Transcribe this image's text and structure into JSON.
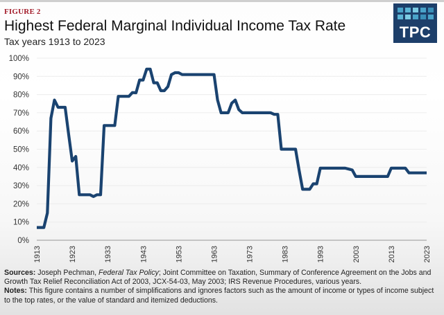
{
  "figure_label": "FIGURE 2",
  "title": "Highest Federal Marginal Individual Income Tax Rate",
  "subtitle": "Tax years 1913 to 2023",
  "logo": {
    "text": "TPC",
    "brand_color": "#1d3f6a"
  },
  "footer": {
    "sources_label": "Sources:",
    "sources_pre": " Joseph Pechman, ",
    "sources_italic": "Federal Tax Policy",
    "sources_post": "; Joint Committee on Taxation, Summary of Conference Agreement on the Jobs and Growth Tax Relief Reconciliation Act of 2003, JCX-54-03, May 2003; IRS Revenue Procedures, various years.",
    "notes_label": "Notes:",
    "notes_text": " This figure contains a number of simplifications and ignores factors such as the amount of income or types of income subject to the top rates, or the value of standard and itemized deductions."
  },
  "chart_data": {
    "type": "line",
    "title": "Highest Federal Marginal Individual Income Tax Rate",
    "subtitle": "Tax years 1913 to 2023",
    "xlabel": "",
    "ylabel": "",
    "xlim": [
      1913,
      2023
    ],
    "ylim": [
      0,
      100
    ],
    "grid": true,
    "legend": "none",
    "line_color": "#1a4370",
    "x_ticks": [
      "1913",
      "1923",
      "1933",
      "1943",
      "1953",
      "1963",
      "1973",
      "1983",
      "1993",
      "2003",
      "2013",
      "2023"
    ],
    "y_ticks": [
      "0%",
      "10%",
      "20%",
      "30%",
      "40%",
      "50%",
      "60%",
      "70%",
      "80%",
      "90%",
      "100%"
    ],
    "y_tick_values": [
      0,
      10,
      20,
      30,
      40,
      50,
      60,
      70,
      80,
      90,
      100
    ],
    "series": [
      {
        "name": "Top marginal rate",
        "x": [
          1913,
          1914,
          1915,
          1916,
          1917,
          1918,
          1919,
          1920,
          1921,
          1922,
          1923,
          1924,
          1925,
          1926,
          1927,
          1928,
          1929,
          1930,
          1931,
          1932,
          1933,
          1934,
          1935,
          1936,
          1937,
          1938,
          1939,
          1940,
          1941,
          1942,
          1943,
          1944,
          1945,
          1946,
          1947,
          1948,
          1949,
          1950,
          1951,
          1952,
          1953,
          1954,
          1955,
          1956,
          1957,
          1958,
          1959,
          1960,
          1961,
          1962,
          1963,
          1964,
          1965,
          1966,
          1967,
          1968,
          1969,
          1970,
          1971,
          1972,
          1973,
          1974,
          1975,
          1976,
          1977,
          1978,
          1979,
          1980,
          1981,
          1982,
          1983,
          1984,
          1985,
          1986,
          1987,
          1988,
          1989,
          1990,
          1991,
          1992,
          1993,
          1994,
          1995,
          1996,
          1997,
          1998,
          1999,
          2000,
          2001,
          2002,
          2003,
          2004,
          2005,
          2006,
          2007,
          2008,
          2009,
          2010,
          2011,
          2012,
          2013,
          2014,
          2015,
          2016,
          2017,
          2018,
          2019,
          2020,
          2021,
          2022,
          2023
        ],
        "values": [
          7,
          7,
          7,
          15,
          67,
          77,
          73,
          73,
          73,
          58,
          43.5,
          46,
          25,
          25,
          25,
          25,
          24,
          25,
          25,
          63,
          63,
          63,
          63,
          79,
          79,
          79,
          79,
          81.1,
          81,
          88,
          88,
          94,
          94,
          86.45,
          86.45,
          82.13,
          82.13,
          84.36,
          91,
          92,
          92,
          91,
          91,
          91,
          91,
          91,
          91,
          91,
          91,
          91,
          91,
          77,
          70,
          70,
          70,
          75.25,
          77,
          71.75,
          70,
          70,
          70,
          70,
          70,
          70,
          70,
          70,
          70,
          69.13,
          69.13,
          50,
          50,
          50,
          50,
          50,
          38.5,
          28,
          28,
          28,
          31,
          31,
          39.6,
          39.6,
          39.6,
          39.6,
          39.6,
          39.6,
          39.6,
          39.6,
          39.1,
          38.6,
          35,
          35,
          35,
          35,
          35,
          35,
          35,
          35,
          35,
          35,
          39.6,
          39.6,
          39.6,
          39.6,
          39.6,
          37,
          37,
          37,
          37,
          37,
          37
        ]
      }
    ]
  }
}
